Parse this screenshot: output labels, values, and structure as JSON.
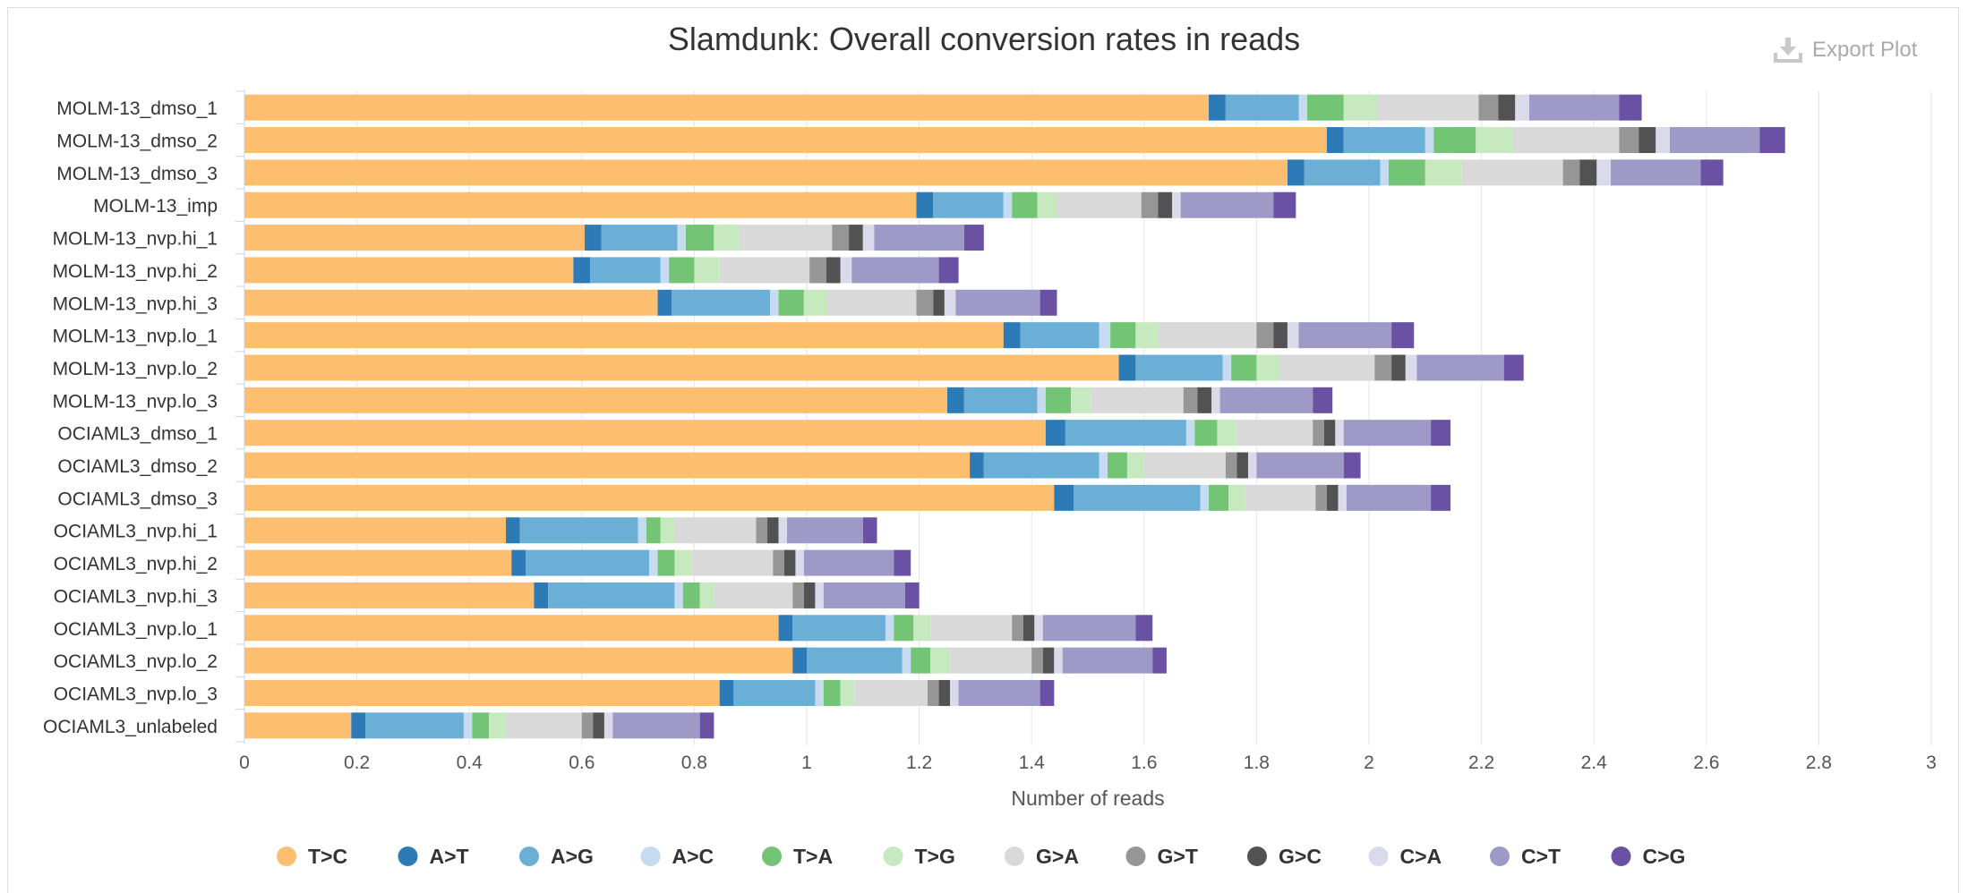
{
  "export_label": "Export Plot",
  "colors": {
    "T>C": "#fdbf6f",
    "A>T": "#2c7bb6",
    "A>G": "#6baed6",
    "A>C": "#c6dbef",
    "T>A": "#74c476",
    "T>G": "#c7e9c0",
    "G>A": "#d9d9d9",
    "G>T": "#969696",
    "G>C": "#525252",
    "C>A": "#dadaeb",
    "C>T": "#9e9ac8",
    "C>G": "#6a51a3"
  },
  "chart_data": {
    "type": "bar",
    "orientation": "horizontal",
    "stacked": true,
    "title": "Slamdunk: Overall conversion rates in reads",
    "xlabel": "Number of reads",
    "ylabel": "",
    "xlim": [
      0,
      3
    ],
    "xticks": [
      "0",
      "0.2",
      "0.4",
      "0.6",
      "0.8",
      "1",
      "1.2",
      "1.4",
      "1.6",
      "1.8",
      "2",
      "2.2",
      "2.4",
      "2.6",
      "2.8",
      "3"
    ],
    "legend_position": "bottom",
    "categories": [
      "MOLM-13_dmso_1",
      "MOLM-13_dmso_2",
      "MOLM-13_dmso_3",
      "MOLM-13_imp",
      "MOLM-13_nvp.hi_1",
      "MOLM-13_nvp.hi_2",
      "MOLM-13_nvp.hi_3",
      "MOLM-13_nvp.lo_1",
      "MOLM-13_nvp.lo_2",
      "MOLM-13_nvp.lo_3",
      "OCIAML3_dmso_1",
      "OCIAML3_dmso_2",
      "OCIAML3_dmso_3",
      "OCIAML3_nvp.hi_1",
      "OCIAML3_nvp.hi_2",
      "OCIAML3_nvp.hi_3",
      "OCIAML3_nvp.lo_1",
      "OCIAML3_nvp.lo_2",
      "OCIAML3_nvp.lo_3",
      "OCIAML3_unlabeled"
    ],
    "series": [
      {
        "name": "T>C",
        "values": [
          1.715,
          1.925,
          1.855,
          1.195,
          0.605,
          0.585,
          0.735,
          1.35,
          1.555,
          1.25,
          1.425,
          1.29,
          1.44,
          0.465,
          0.475,
          0.515,
          0.95,
          0.975,
          0.845,
          0.19
        ]
      },
      {
        "name": "A>T",
        "values": [
          0.03,
          0.03,
          0.03,
          0.03,
          0.03,
          0.03,
          0.025,
          0.03,
          0.03,
          0.03,
          0.035,
          0.025,
          0.035,
          0.025,
          0.025,
          0.025,
          0.025,
          0.025,
          0.025,
          0.025
        ]
      },
      {
        "name": "A>G",
        "values": [
          0.13,
          0.145,
          0.135,
          0.125,
          0.135,
          0.125,
          0.175,
          0.14,
          0.155,
          0.13,
          0.215,
          0.205,
          0.225,
          0.21,
          0.22,
          0.225,
          0.165,
          0.17,
          0.145,
          0.175
        ]
      },
      {
        "name": "A>C",
        "values": [
          0.015,
          0.015,
          0.015,
          0.015,
          0.015,
          0.015,
          0.015,
          0.02,
          0.015,
          0.015,
          0.015,
          0.015,
          0.015,
          0.015,
          0.015,
          0.015,
          0.015,
          0.015,
          0.015,
          0.015
        ]
      },
      {
        "name": "T>A",
        "values": [
          0.065,
          0.075,
          0.065,
          0.045,
          0.05,
          0.045,
          0.045,
          0.045,
          0.045,
          0.045,
          0.04,
          0.035,
          0.035,
          0.025,
          0.03,
          0.03,
          0.035,
          0.035,
          0.03,
          0.03
        ]
      },
      {
        "name": "T>G",
        "values": [
          0.06,
          0.065,
          0.065,
          0.035,
          0.045,
          0.045,
          0.04,
          0.04,
          0.04,
          0.035,
          0.035,
          0.03,
          0.03,
          0.025,
          0.03,
          0.025,
          0.03,
          0.035,
          0.025,
          0.03
        ]
      },
      {
        "name": "G>A",
        "values": [
          0.18,
          0.19,
          0.18,
          0.15,
          0.165,
          0.16,
          0.16,
          0.175,
          0.17,
          0.165,
          0.135,
          0.145,
          0.125,
          0.145,
          0.145,
          0.14,
          0.145,
          0.145,
          0.13,
          0.135
        ]
      },
      {
        "name": "G>T",
        "values": [
          0.035,
          0.035,
          0.03,
          0.03,
          0.03,
          0.03,
          0.03,
          0.03,
          0.03,
          0.025,
          0.02,
          0.02,
          0.02,
          0.02,
          0.02,
          0.02,
          0.02,
          0.02,
          0.02,
          0.02
        ]
      },
      {
        "name": "G>C",
        "values": [
          0.03,
          0.03,
          0.03,
          0.025,
          0.025,
          0.025,
          0.02,
          0.025,
          0.025,
          0.025,
          0.02,
          0.02,
          0.02,
          0.02,
          0.02,
          0.02,
          0.02,
          0.02,
          0.02,
          0.02
        ]
      },
      {
        "name": "C>A",
        "values": [
          0.025,
          0.025,
          0.025,
          0.015,
          0.02,
          0.02,
          0.02,
          0.02,
          0.02,
          0.015,
          0.015,
          0.015,
          0.015,
          0.015,
          0.015,
          0.015,
          0.015,
          0.015,
          0.015,
          0.015
        ]
      },
      {
        "name": "C>T",
        "values": [
          0.16,
          0.16,
          0.16,
          0.165,
          0.16,
          0.155,
          0.15,
          0.165,
          0.155,
          0.165,
          0.155,
          0.155,
          0.15,
          0.135,
          0.16,
          0.145,
          0.165,
          0.16,
          0.145,
          0.155
        ]
      },
      {
        "name": "C>G",
        "values": [
          0.04,
          0.045,
          0.04,
          0.04,
          0.035,
          0.035,
          0.03,
          0.04,
          0.035,
          0.035,
          0.035,
          0.03,
          0.035,
          0.025,
          0.03,
          0.025,
          0.03,
          0.025,
          0.025,
          0.025
        ]
      }
    ]
  }
}
